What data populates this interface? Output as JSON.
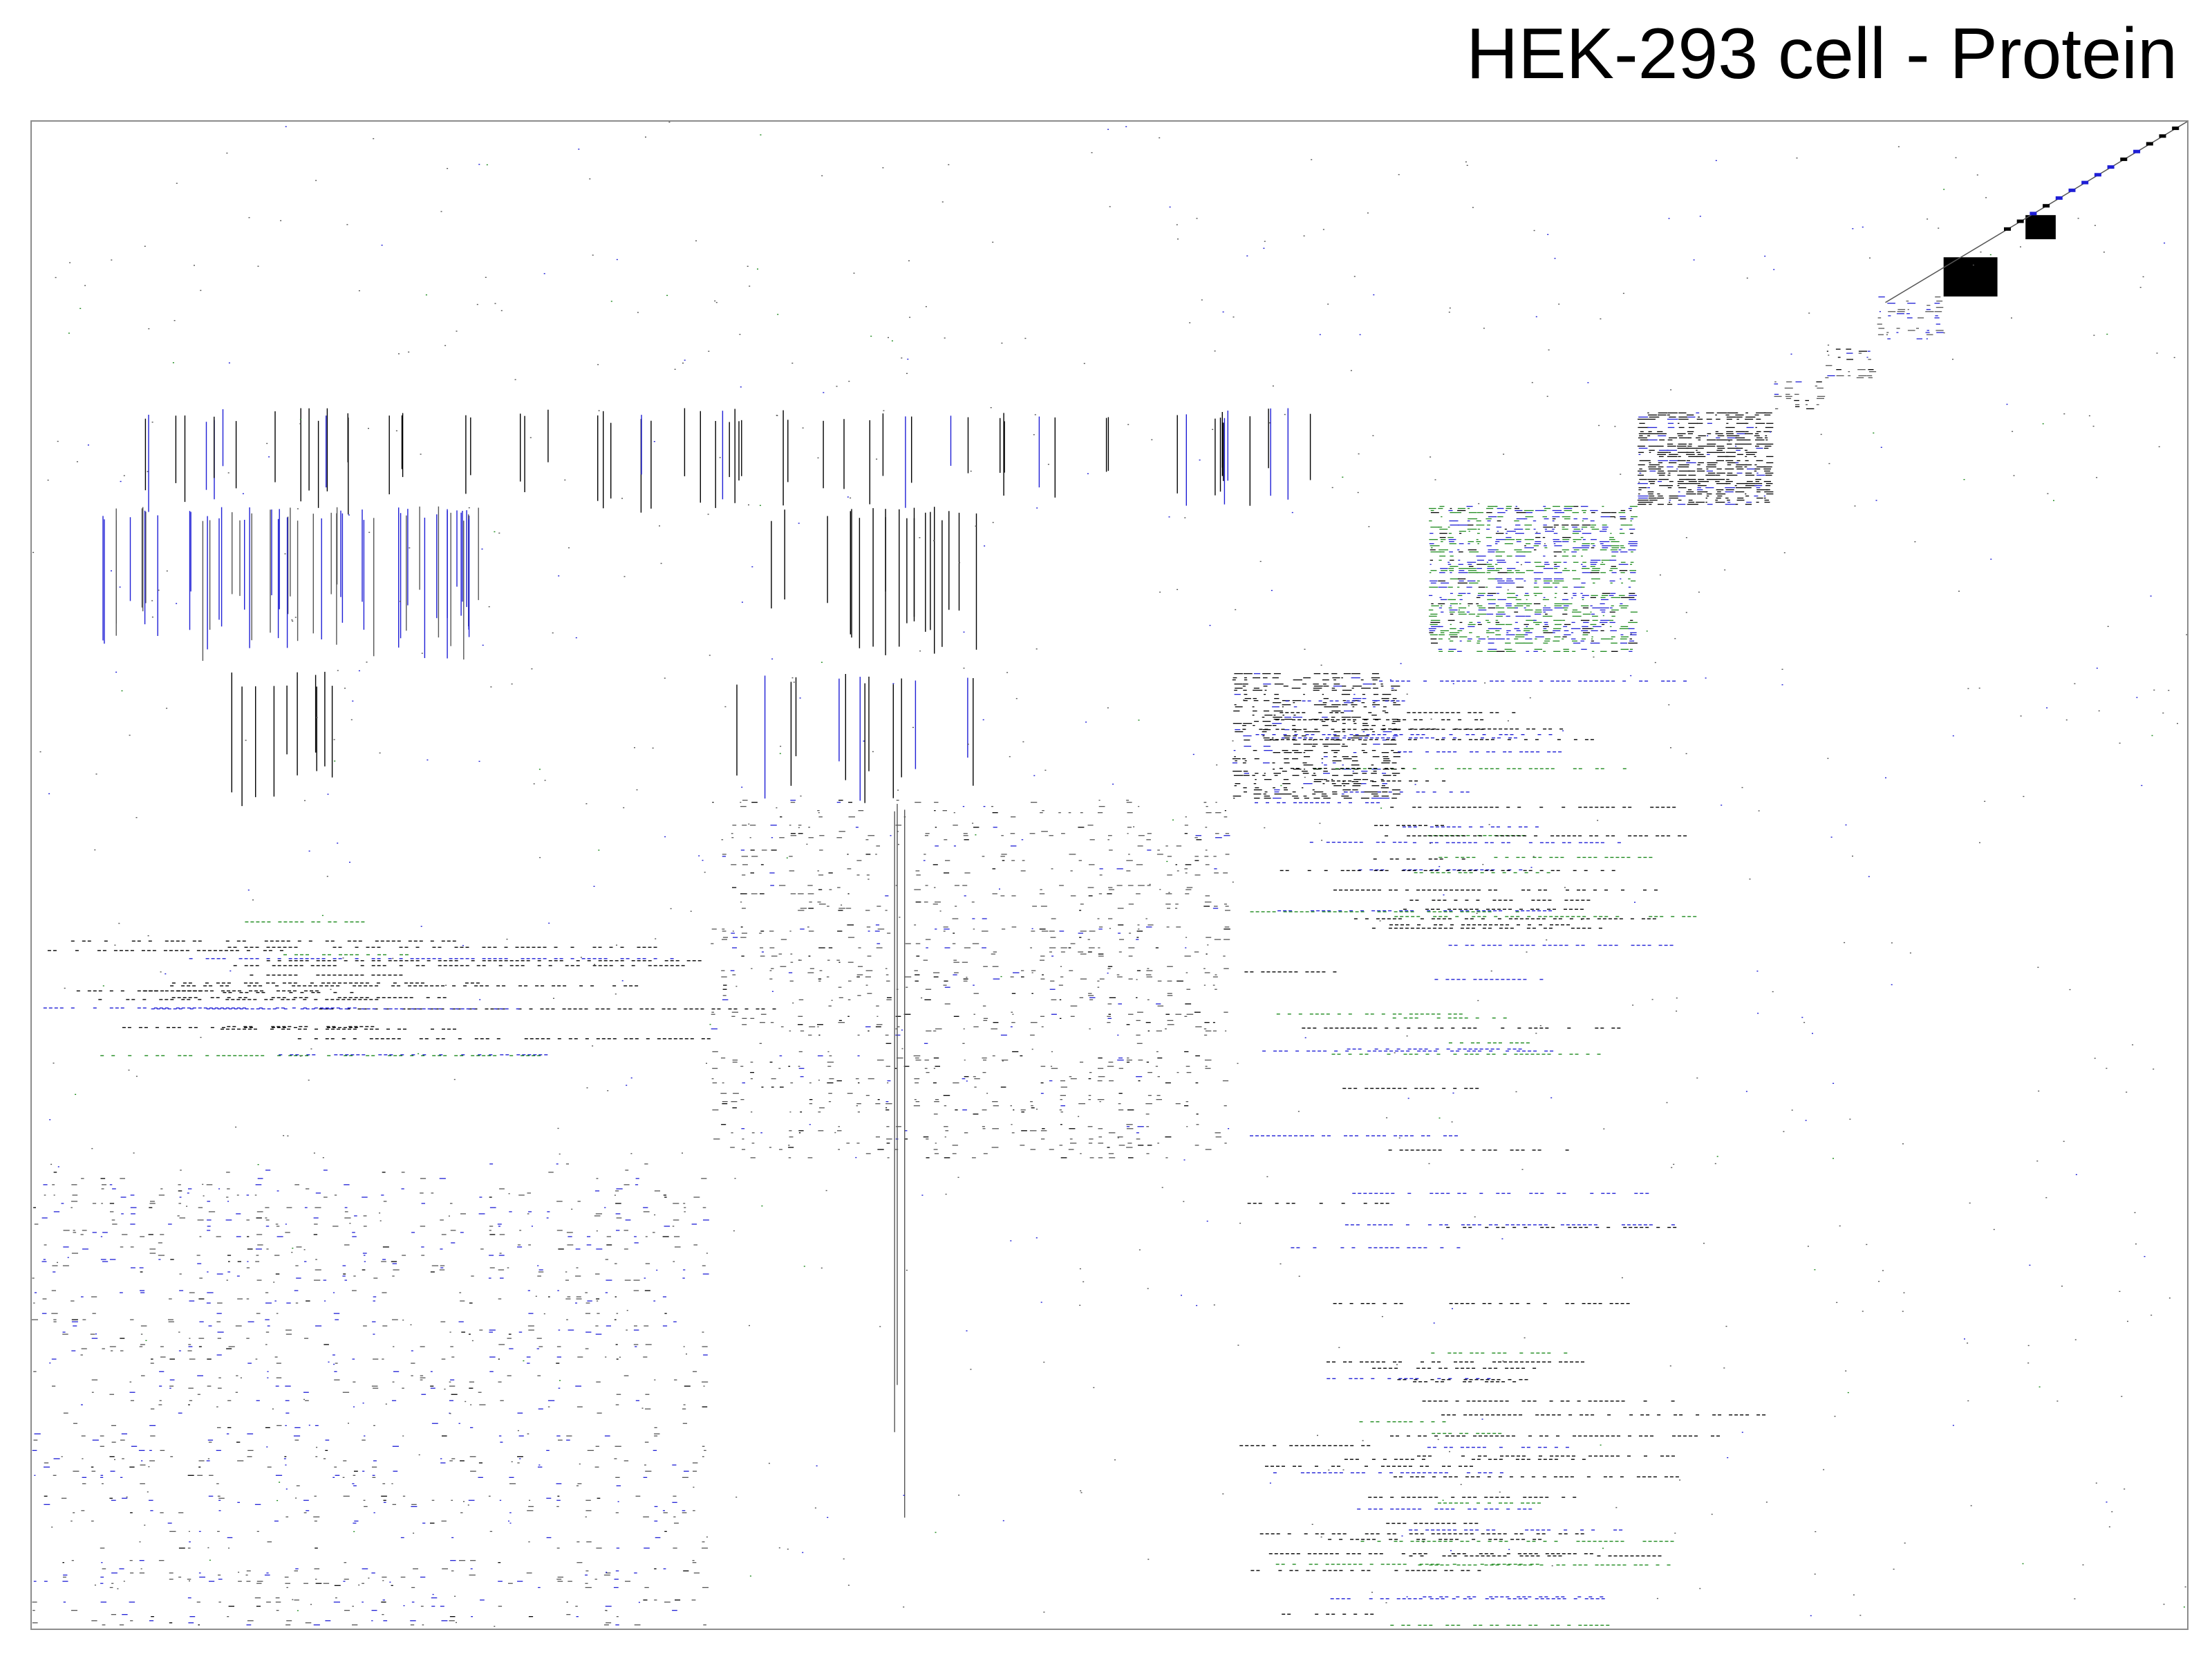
{
  "chart_data": {
    "type": "heatmap",
    "title": "HEK-293 cell - Protein",
    "xlabel": "",
    "ylabel": "",
    "grid": false,
    "legend": "none",
    "colors": {
      "background": "#ffffff",
      "frame": "#8c8c8c",
      "default": "#000000",
      "blue": "#1f1fd6",
      "green": "#1e8a1e",
      "grey": "#555555"
    },
    "cluster_blocks": [
      {
        "name": "block-1",
        "start": 0.0,
        "end": 0.315,
        "row_start": 0.69,
        "row_end": 1.0,
        "density": 0.11,
        "color": "mixed-blue"
      },
      {
        "name": "block-2",
        "start": 0.315,
        "end": 0.557,
        "row_start": 0.45,
        "row_end": 0.69,
        "density": 0.15,
        "color": "grey"
      },
      {
        "name": "block-3",
        "start": 0.557,
        "end": 0.635,
        "row_start": 0.366,
        "row_end": 0.45,
        "density": 0.5,
        "color": "black"
      },
      {
        "name": "block-4",
        "start": 0.648,
        "end": 0.745,
        "row_start": 0.255,
        "row_end": 0.354,
        "density": 0.55,
        "color": "green-blue"
      },
      {
        "name": "block-5",
        "start": 0.745,
        "end": 0.808,
        "row_start": 0.193,
        "row_end": 0.255,
        "density": 0.7,
        "color": "black"
      },
      {
        "name": "block-6",
        "start": 0.808,
        "end": 0.832,
        "row_start": 0.171,
        "row_end": 0.193,
        "density": 0.35,
        "color": "grey"
      },
      {
        "name": "block-7",
        "start": 0.832,
        "end": 0.856,
        "row_start": 0.148,
        "row_end": 0.171,
        "density": 0.35,
        "color": "grey"
      },
      {
        "name": "block-8",
        "start": 0.856,
        "end": 0.887,
        "row_start": 0.116,
        "row_end": 0.148,
        "density": 0.4,
        "color": "blue-grey"
      },
      {
        "name": "block-9",
        "start": 0.887,
        "end": 0.912,
        "row_start": 0.09,
        "row_end": 0.116,
        "density": 1.0,
        "color": "black"
      },
      {
        "name": "block-10",
        "start": 0.925,
        "end": 0.939,
        "row_start": 0.062,
        "row_end": 0.078,
        "density": 1.0,
        "color": "black"
      }
    ]
  }
}
